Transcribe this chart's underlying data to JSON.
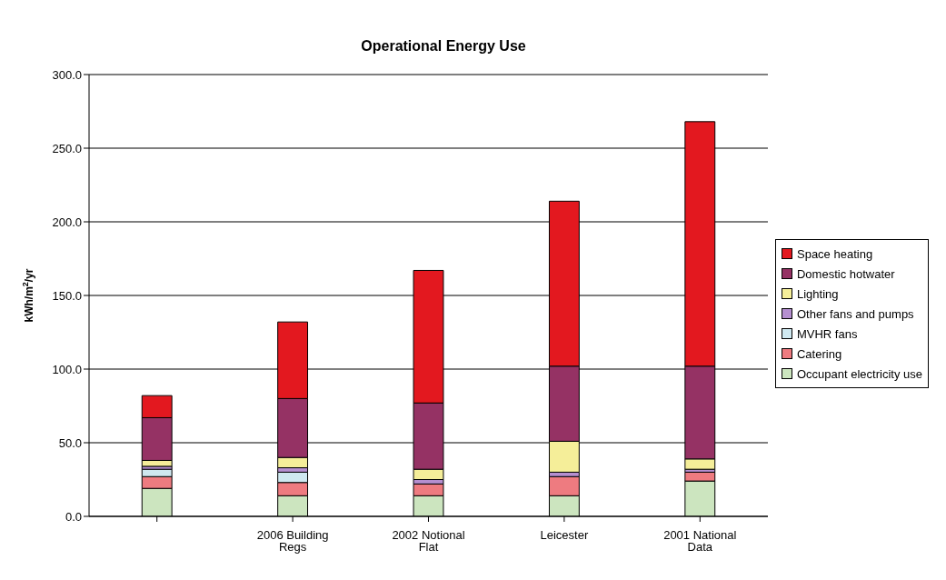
{
  "chart_data": {
    "type": "bar",
    "title": "Operational Energy Use",
    "ylabel": "kWh/m$^{2}$/yr",
    "categories": [
      null,
      "2006 Building Regs",
      "2002 Notional Flat",
      "Leicester",
      "2001 National Data"
    ],
    "stacked": true,
    "series": [
      {
        "name": "Occupant electricity use",
        "color": "#cce5bf",
        "values": [
          19,
          14,
          14,
          14,
          24
        ]
      },
      {
        "name": "Catering",
        "color": "#ee7b80",
        "values": [
          8,
          9,
          8,
          13,
          6
        ]
      },
      {
        "name": "MVHR fans",
        "color": "#cfe8f0",
        "values": [
          5,
          7,
          0,
          0,
          0
        ]
      },
      {
        "name": "Other fans and pumps",
        "color": "#b58fd0",
        "values": [
          2,
          3,
          3,
          3,
          2
        ]
      },
      {
        "name": "Lighting",
        "color": "#f5ee99",
        "values": [
          4,
          7,
          7,
          21,
          7
        ]
      },
      {
        "name": "Domestic hotwater",
        "color": "#953264",
        "values": [
          29,
          40,
          45,
          51,
          63
        ]
      },
      {
        "name": "Space heating",
        "color": "#e3181f",
        "values": [
          15,
          52,
          90,
          112,
          166
        ]
      }
    ],
    "ylim": [
      0,
      300
    ],
    "yticks": [
      {
        "value": 0,
        "label": "0.0"
      },
      {
        "value": 50,
        "label": "50.0"
      },
      {
        "value": 100,
        "label": "100.0"
      },
      {
        "value": 150,
        "label": "150.0"
      },
      {
        "value": 200,
        "label": "200.0"
      },
      {
        "value": 250,
        "label": "250.0"
      },
      {
        "value": 300,
        "label": "300.0"
      }
    ],
    "grid": "y",
    "legend": "right"
  }
}
